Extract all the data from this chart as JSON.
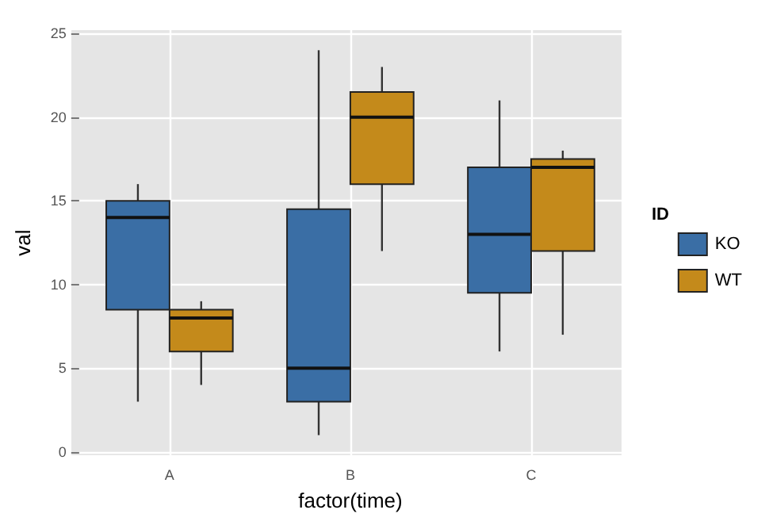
{
  "chart_data": {
    "type": "box",
    "xlabel": "factor(time)",
    "ylabel": "val",
    "legend_title": "ID",
    "categories": [
      "A",
      "B",
      "C"
    ],
    "series": [
      {
        "name": "KO",
        "color": "#3a6ea5",
        "boxes": [
          {
            "low": 3,
            "q1": 8.5,
            "median": 14,
            "q3": 15,
            "high": 16
          },
          {
            "low": 1,
            "q1": 3,
            "median": 5,
            "q3": 14.5,
            "high": 24
          },
          {
            "low": 6,
            "q1": 9.5,
            "median": 13,
            "q3": 17,
            "high": 21
          }
        ]
      },
      {
        "name": "WT",
        "color": "#c48a1b",
        "boxes": [
          {
            "low": 4,
            "q1": 6,
            "median": 8,
            "q3": 8.5,
            "high": 9
          },
          {
            "low": 12,
            "q1": 16,
            "median": 20,
            "q3": 21.5,
            "high": 23
          },
          {
            "low": 7,
            "q1": 12,
            "median": 17,
            "q3": 17.5,
            "high": 18
          }
        ]
      }
    ],
    "ylim": [
      -0.2,
      25.2
    ],
    "yticks": [
      0,
      5,
      10,
      15,
      20,
      25
    ],
    "grid": true,
    "legend": "right"
  }
}
